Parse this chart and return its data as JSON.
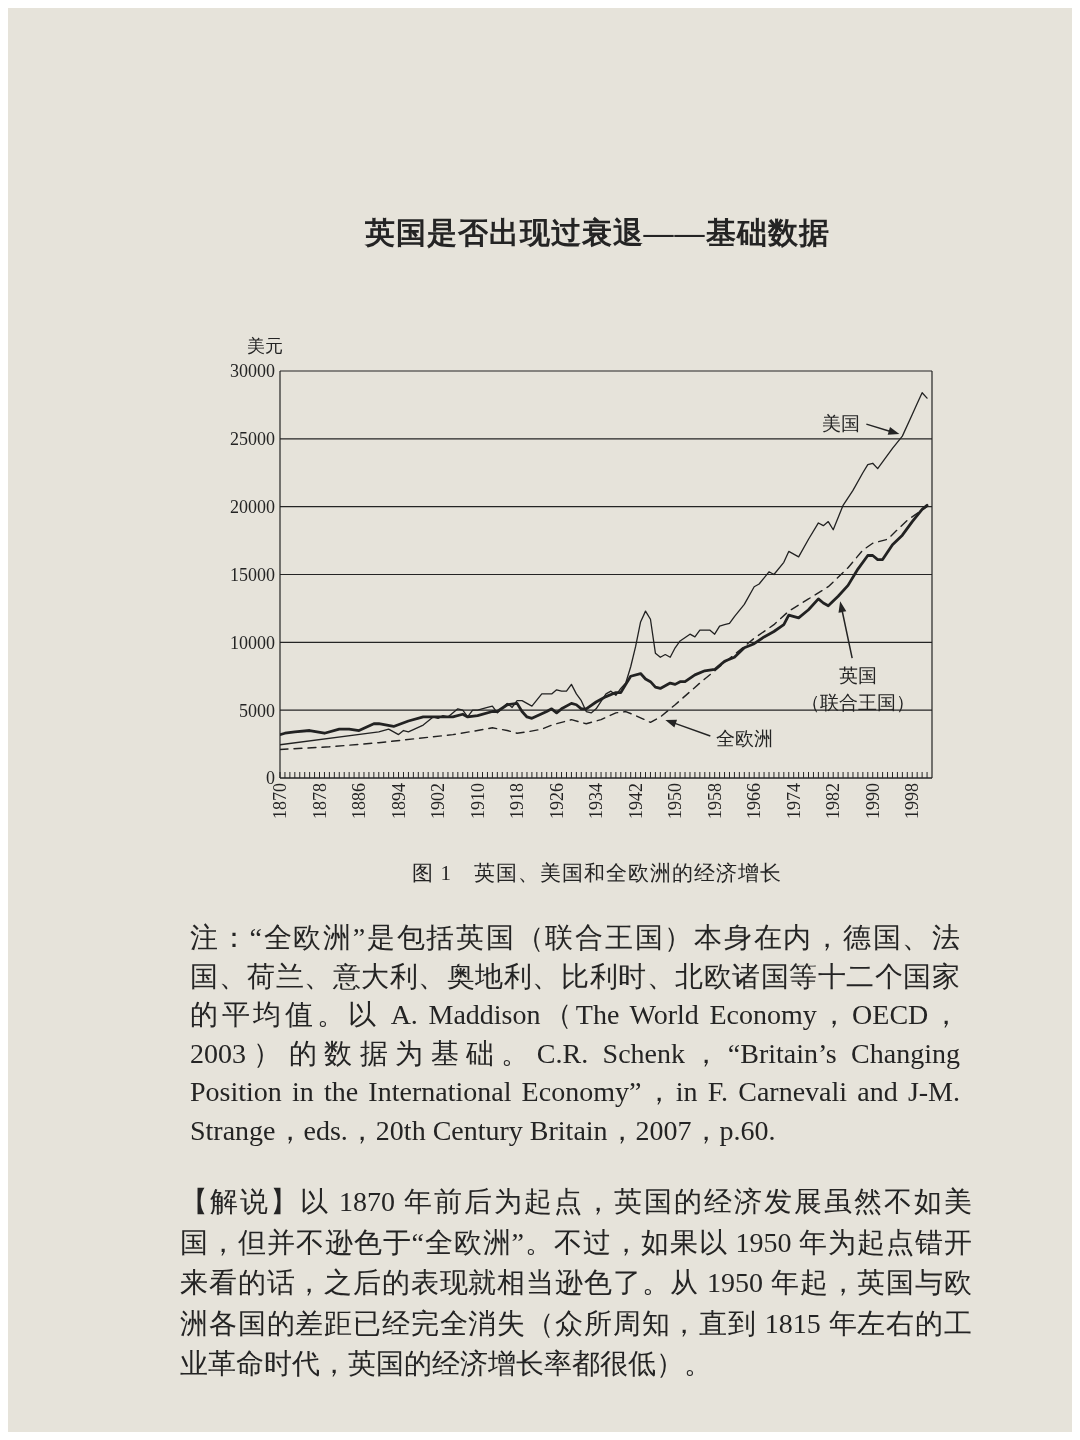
{
  "chart_data": {
    "type": "line",
    "title": "英国是否出现过衰退——基础数据",
    "ylabel": "美元",
    "annotations": [
      "图 1　英国、美国和全欧洲的经济增长",
      "注：“全欧洲”是包括英国（联合王国）本身在内，德国、法国、荷兰、意大利、奥地利、比利时、北欧诸国等十二个国家的平均值。以 A. Maddison（The World Economy，OECD，2003）的数据为基础。C.R. Schenk，“Britain’s Changing Position in the International Economy”，in F. Carnevali and J-M. Strange，eds.，20th Century Britain，2007，p.60.",
      "【解说】以 1870 年前后为起点，英国的经济发展虽然不如美国，但并不逊色于“全欧洲”。不过，如果以 1950 年为起点错开来看的话，之后的表现就相当逊色了。从 1950 年起，英国与欧洲各国的差距已经完全消失（众所周知，直到 1815 年左右的工业革命时代，英国的经济增长率都很低）。"
    ],
    "series": [
      {
        "name": "美国",
        "color": "#222222",
        "line_style": "solid",
        "x": [
          1870,
          1890,
          1892,
          1894,
          1895,
          1896,
          1899,
          1901,
          1902,
          1903,
          1904,
          1906,
          1907,
          1908,
          1909,
          1910,
          1912,
          1913,
          1914,
          1916,
          1917,
          1918,
          1919,
          1921,
          1923,
          1925,
          1926,
          1927,
          1928,
          1929,
          1930,
          1931,
          1932,
          1933,
          1934,
          1936,
          1937,
          1938,
          1939,
          1940,
          1941,
          1942,
          1943,
          1944,
          1945,
          1946,
          1947,
          1948,
          1949,
          1950,
          1951,
          1953,
          1954,
          1955,
          1957,
          1958,
          1959,
          1960,
          1961,
          1962,
          1964,
          1966,
          1967,
          1969,
          1970,
          1972,
          1973,
          1975,
          1977,
          1979,
          1980,
          1981,
          1982,
          1984,
          1986,
          1988,
          1989,
          1990,
          1991,
          1992,
          1994,
          1996,
          1998,
          1999,
          2000,
          2001
        ],
        "values": [
          2450,
          3400,
          3600,
          3200,
          3500,
          3400,
          3900,
          4500,
          4400,
          4600,
          4500,
          5100,
          5000,
          4500,
          5000,
          5000,
          5200,
          5300,
          4800,
          5500,
          5200,
          5700,
          5700,
          5300,
          6200,
          6200,
          6500,
          6400,
          6400,
          6900,
          6200,
          5700,
          4900,
          4800,
          5100,
          6200,
          6400,
          6100,
          6600,
          7000,
          8200,
          9700,
          11500,
          12300,
          11700,
          9200,
          8900,
          9100,
          8900,
          9600,
          10100,
          10600,
          10400,
          10900,
          10900,
          10600,
          11200,
          11300,
          11400,
          11900,
          12800,
          14100,
          14300,
          15200,
          15000,
          15900,
          16700,
          16300,
          17600,
          18800,
          18600,
          18900,
          18300,
          20100,
          21200,
          22500,
          23100,
          23200,
          22800,
          23300,
          24300,
          25200,
          26800,
          27600,
          28400,
          28000
        ]
      },
      {
        "name": "英国（联合王国）",
        "color": "#222222",
        "line_style": "solid",
        "x": [
          1870,
          1871,
          1873,
          1876,
          1879,
          1882,
          1884,
          1886,
          1889,
          1890,
          1893,
          1896,
          1899,
          1900,
          1903,
          1905,
          1907,
          1908,
          1910,
          1913,
          1914,
          1916,
          1918,
          1919,
          1920,
          1921,
          1924,
          1925,
          1926,
          1927,
          1929,
          1930,
          1931,
          1932,
          1934,
          1936,
          1938,
          1939,
          1940,
          1941,
          1943,
          1944,
          1945,
          1946,
          1947,
          1949,
          1950,
          1951,
          1952,
          1954,
          1956,
          1958,
          1960,
          1962,
          1964,
          1966,
          1968,
          1970,
          1972,
          1973,
          1975,
          1977,
          1979,
          1980,
          1981,
          1983,
          1985,
          1987,
          1989,
          1990,
          1991,
          1992,
          1994,
          1996,
          1998,
          2000,
          2001
        ],
        "values": [
          3200,
          3300,
          3400,
          3500,
          3300,
          3600,
          3600,
          3500,
          4000,
          4000,
          3800,
          4200,
          4500,
          4500,
          4500,
          4500,
          4700,
          4500,
          4600,
          4900,
          4900,
          5400,
          5500,
          4900,
          4500,
          4400,
          4900,
          5100,
          4800,
          5100,
          5500,
          5400,
          5100,
          5100,
          5600,
          6000,
          6300,
          6300,
          6900,
          7500,
          7700,
          7300,
          7100,
          6700,
          6600,
          7000,
          6900,
          7100,
          7100,
          7600,
          7900,
          8000,
          8600,
          8900,
          9600,
          9900,
          10400,
          10800,
          11300,
          12000,
          11800,
          12400,
          13200,
          12900,
          12700,
          13400,
          14200,
          15400,
          16400,
          16400,
          16100,
          16100,
          17200,
          17900,
          18900,
          19800,
          20100
        ]
      },
      {
        "name": "全欧洲",
        "color": "#222222",
        "line_style": "dashed",
        "x": [
          1870,
          1880,
          1890,
          1900,
          1905,
          1910,
          1913,
          1916,
          1918,
          1920,
          1923,
          1925,
          1929,
          1932,
          1935,
          1938,
          1940,
          1942,
          1945,
          1947,
          1950,
          1955,
          1960,
          1966,
          1970,
          1973,
          1977,
          1981,
          1985,
          1988,
          1990,
          1993,
          1997,
          2001
        ],
        "values": [
          2100,
          2300,
          2600,
          3000,
          3200,
          3500,
          3700,
          3500,
          3300,
          3400,
          3600,
          3900,
          4300,
          4000,
          4300,
          4800,
          4900,
          4600,
          4100,
          4500,
          5400,
          7000,
          8500,
          10300,
          11300,
          12300,
          13200,
          14100,
          15500,
          16800,
          17300,
          17600,
          19000,
          20000
        ]
      }
    ],
    "xlim": [
      1870,
      2002
    ],
    "xticks": [
      1870,
      {
        "value": 1871,
        "label": null
      },
      {
        "value": 1872,
        "label": null
      },
      {
        "value": 1873,
        "label": null
      },
      {
        "value": 1874,
        "label": null
      },
      {
        "value": 1875,
        "label": null
      },
      {
        "value": 1876,
        "label": null
      },
      {
        "value": 1877,
        "label": null
      },
      1878,
      {
        "value": 1879,
        "label": null
      },
      {
        "value": 1880,
        "label": null
      },
      {
        "value": 1881,
        "label": null
      },
      {
        "value": 1882,
        "label": null
      },
      {
        "value": 1883,
        "label": null
      },
      {
        "value": 1884,
        "label": null
      },
      {
        "value": 1885,
        "label": null
      },
      1886,
      {
        "value": 1887,
        "label": null
      },
      {
        "value": 1888,
        "label": null
      },
      {
        "value": 1889,
        "label": null
      },
      {
        "value": 1890,
        "label": null
      },
      {
        "value": 1891,
        "label": null
      },
      {
        "value": 1892,
        "label": null
      },
      {
        "value": 1893,
        "label": null
      },
      1894,
      {
        "value": 1895,
        "label": null
      },
      {
        "value": 1896,
        "label": null
      },
      {
        "value": 1897,
        "label": null
      },
      {
        "value": 1898,
        "label": null
      },
      {
        "value": 1899,
        "label": null
      },
      {
        "value": 1900,
        "label": null
      },
      {
        "value": 1901,
        "label": null
      },
      1902,
      {
        "value": 1903,
        "label": null
      },
      {
        "value": 1904,
        "label": null
      },
      {
        "value": 1905,
        "label": null
      },
      {
        "value": 1906,
        "label": null
      },
      {
        "value": 1907,
        "label": null
      },
      {
        "value": 1908,
        "label": null
      },
      {
        "value": 1909,
        "label": null
      },
      1910,
      {
        "value": 1911,
        "label": null
      },
      {
        "value": 1912,
        "label": null
      },
      {
        "value": 1913,
        "label": null
      },
      {
        "value": 1914,
        "label": null
      },
      {
        "value": 1915,
        "label": null
      },
      {
        "value": 1916,
        "label": null
      },
      {
        "value": 1917,
        "label": null
      },
      1918,
      {
        "value": 1919,
        "label": null
      },
      {
        "value": 1920,
        "label": null
      },
      {
        "value": 1921,
        "label": null
      },
      {
        "value": 1922,
        "label": null
      },
      {
        "value": 1923,
        "label": null
      },
      {
        "value": 1924,
        "label": null
      },
      {
        "value": 1925,
        "label": null
      },
      1926,
      {
        "value": 1927,
        "label": null
      },
      {
        "value": 1928,
        "label": null
      },
      {
        "value": 1929,
        "label": null
      },
      {
        "value": 1930,
        "label": null
      },
      {
        "value": 1931,
        "label": null
      },
      {
        "value": 1932,
        "label": null
      },
      {
        "value": 1933,
        "label": null
      },
      1934,
      {
        "value": 1935,
        "label": null
      },
      {
        "value": 1936,
        "label": null
      },
      {
        "value": 1937,
        "label": null
      },
      {
        "value": 1938,
        "label": null
      },
      {
        "value": 1939,
        "label": null
      },
      {
        "value": 1940,
        "label": null
      },
      {
        "value": 1941,
        "label": null
      },
      1942,
      {
        "value": 1943,
        "label": null
      },
      {
        "value": 1944,
        "label": null
      },
      {
        "value": 1945,
        "label": null
      },
      {
        "value": 1946,
        "label": null
      },
      {
        "value": 1947,
        "label": null
      },
      {
        "value": 1948,
        "label": null
      },
      {
        "value": 1949,
        "label": null
      },
      1950,
      {
        "value": 1951,
        "label": null
      },
      {
        "value": 1952,
        "label": null
      },
      {
        "value": 1953,
        "label": null
      },
      {
        "value": 1954,
        "label": null
      },
      {
        "value": 1955,
        "label": null
      },
      {
        "value": 1956,
        "label": null
      },
      {
        "value": 1957,
        "label": null
      },
      1958,
      {
        "value": 1959,
        "label": null
      },
      {
        "value": 1960,
        "label": null
      },
      {
        "value": 1961,
        "label": null
      },
      {
        "value": 1962,
        "label": null
      },
      {
        "value": 1963,
        "label": null
      },
      {
        "value": 1964,
        "label": null
      },
      {
        "value": 1965,
        "label": null
      },
      1966,
      {
        "value": 1967,
        "label": null
      },
      {
        "value": 1968,
        "label": null
      },
      {
        "value": 1969,
        "label": null
      },
      {
        "value": 1970,
        "label": null
      },
      {
        "value": 1971,
        "label": null
      },
      {
        "value": 1972,
        "label": null
      },
      {
        "value": 1973,
        "label": null
      },
      1974,
      {
        "value": 1975,
        "label": null
      },
      {
        "value": 1976,
        "label": null
      },
      {
        "value": 1977,
        "label": null
      },
      {
        "value": 1978,
        "label": null
      },
      {
        "value": 1979,
        "label": null
      },
      {
        "value": 1980,
        "label": null
      },
      {
        "value": 1981,
        "label": null
      },
      1982,
      {
        "value": 1983,
        "label": null
      },
      {
        "value": 1984,
        "label": null
      },
      {
        "value": 1985,
        "label": null
      },
      {
        "value": 1986,
        "label": null
      },
      {
        "value": 1987,
        "label": null
      },
      {
        "value": 1988,
        "label": null
      },
      {
        "value": 1989,
        "label": null
      },
      1990,
      {
        "value": 1991,
        "label": null
      },
      {
        "value": 1992,
        "label": null
      },
      {
        "value": 1993,
        "label": null
      },
      {
        "value": 1994,
        "label": null
      },
      {
        "value": 1995,
        "label": null
      },
      {
        "value": 1996,
        "label": null
      },
      {
        "value": 1997,
        "label": null
      },
      1998,
      {
        "value": 1999,
        "label": null
      },
      {
        "value": 2000,
        "label": null
      },
      {
        "value": 2001,
        "label": null
      }
    ],
    "ylim": [
      0,
      30000
    ],
    "yticks": [
      0,
      5000,
      10000,
      15000,
      20000,
      25000,
      30000
    ],
    "grid": "y"
  }
}
